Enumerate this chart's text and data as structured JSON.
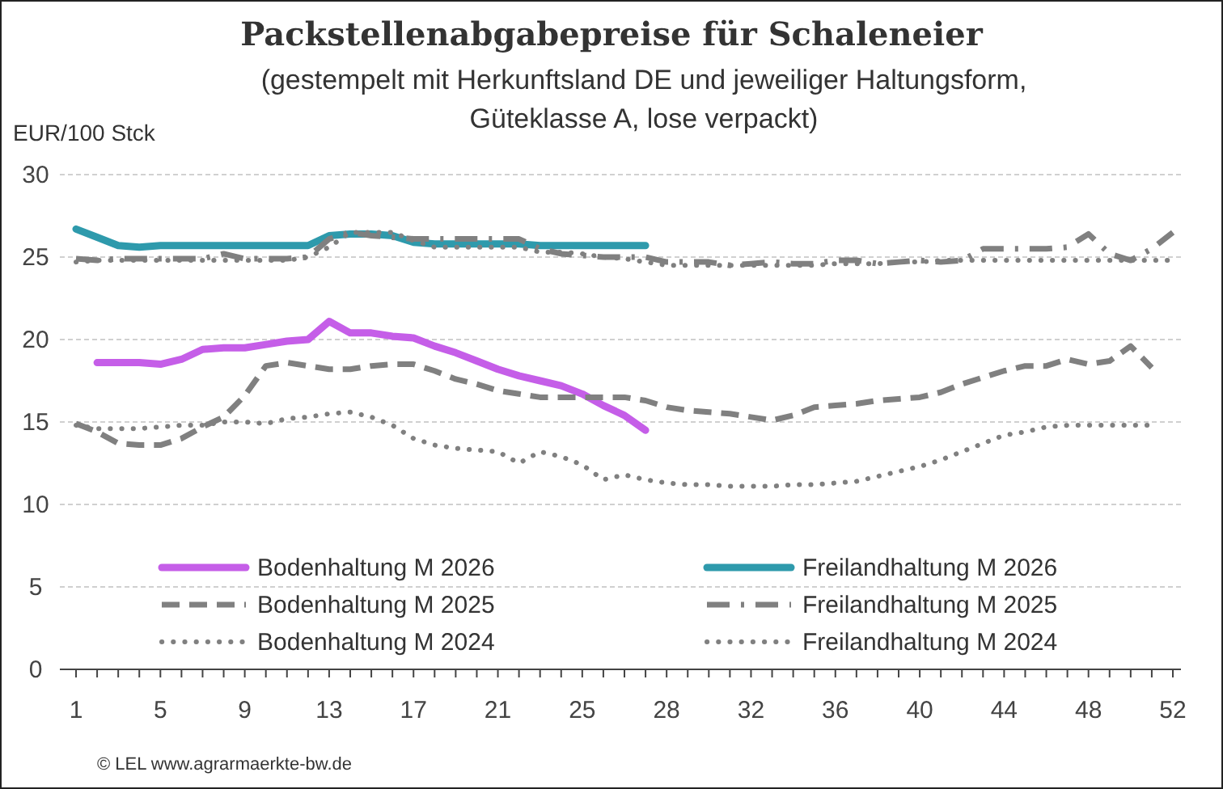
{
  "chart_data": {
    "type": "line",
    "title": "Packstellenabgabepreise für Schaleneier",
    "subtitle": "(gestempelt mit Herkunftsland DE und jeweiliger Haltungsform,\nGüteklasse A, lose verpackt)",
    "ylabel": "EUR/100 Stck",
    "annotations": [
      "© LEL www.agrarmaerkte-bw.de"
    ],
    "categories": [
      "1",
      null,
      null,
      null,
      "5",
      null,
      null,
      null,
      "9",
      null,
      null,
      null,
      "13",
      null,
      null,
      null,
      "17",
      null,
      null,
      null,
      "21",
      null,
      null,
      null,
      "25",
      null,
      null,
      null,
      "28",
      null,
      null,
      null,
      "32",
      null,
      null,
      null,
      "36",
      null,
      null,
      null,
      "40",
      null,
      null,
      null,
      "44",
      null,
      null,
      null,
      "48",
      null,
      null,
      null,
      "52"
    ],
    "ylim": [
      0,
      30
    ],
    "yticks": [
      0,
      5,
      10,
      15,
      20,
      25,
      30
    ],
    "grid": "y",
    "legend": "bottom",
    "marker": "none",
    "series": [
      {
        "name": "Bodenhaltung M 2026",
        "color": "#c55ee8",
        "line_style": "solid",
        "values": [
          null,
          18.6,
          18.6,
          18.6,
          18.5,
          18.8,
          19.4,
          19.5,
          19.5,
          19.7,
          19.9,
          20.0,
          21.1,
          20.4,
          20.4,
          20.2,
          20.1,
          19.6,
          19.2,
          18.7,
          18.2,
          17.8,
          17.5,
          17.2,
          16.7,
          16.0,
          15.4,
          14.5,
          null,
          null,
          null,
          null,
          null,
          null,
          null,
          null,
          null,
          null,
          null,
          null,
          null,
          null,
          null,
          null,
          null,
          null,
          null,
          null,
          null,
          null,
          null,
          null,
          null
        ]
      },
      {
        "name": "Freilandhaltung M 2026",
        "color": "#2e9aac",
        "line_style": "solid",
        "values": [
          26.7,
          26.2,
          25.7,
          25.6,
          25.7,
          25.7,
          25.7,
          25.7,
          25.7,
          25.7,
          25.7,
          25.7,
          26.3,
          26.4,
          26.4,
          26.3,
          25.9,
          25.8,
          25.8,
          25.8,
          25.8,
          25.8,
          25.7,
          25.7,
          25.7,
          25.7,
          25.7,
          25.7,
          null,
          null,
          null,
          null,
          null,
          null,
          null,
          null,
          null,
          null,
          null,
          null,
          null,
          null,
          null,
          null,
          null,
          null,
          null,
          null,
          null,
          null,
          null,
          null,
          null
        ]
      },
      {
        "name": "Bodenhaltung M 2025",
        "color": "#808080",
        "line_style": "dashed",
        "values": [
          14.9,
          14.4,
          13.7,
          13.6,
          13.6,
          14.0,
          14.7,
          15.3,
          16.6,
          18.4,
          18.6,
          18.4,
          18.2,
          18.2,
          18.4,
          18.5,
          18.5,
          18.1,
          17.6,
          17.3,
          16.9,
          16.7,
          16.5,
          16.5,
          16.5,
          16.5,
          16.5,
          16.3,
          15.9,
          15.7,
          15.6,
          15.5,
          15.3,
          15.1,
          15.4,
          15.9,
          16.0,
          16.1,
          16.3,
          16.4,
          16.5,
          16.8,
          17.3,
          17.7,
          18.1,
          18.4,
          18.4,
          18.8,
          18.5,
          18.7,
          19.6,
          18.3,
          null
        ]
      },
      {
        "name": "Freilandhaltung M 2025",
        "color": "#808080",
        "line_style": "dashdot",
        "values": [
          24.9,
          24.8,
          24.9,
          24.9,
          24.9,
          24.9,
          24.9,
          25.2,
          24.9,
          24.9,
          24.9,
          25.0,
          26.1,
          26.5,
          26.3,
          26.2,
          26.1,
          26.1,
          26.1,
          26.1,
          26.1,
          26.1,
          25.5,
          25.2,
          25.1,
          25.0,
          25.0,
          25.0,
          24.7,
          24.7,
          24.7,
          24.5,
          24.6,
          24.7,
          24.6,
          24.6,
          24.8,
          24.8,
          24.6,
          24.7,
          24.8,
          24.7,
          24.8,
          25.5,
          25.5,
          25.5,
          25.5,
          25.6,
          26.4,
          25.2,
          24.8,
          25.5,
          26.5
        ]
      },
      {
        "name": "Bodenhaltung M 2024",
        "color": "#808080",
        "line_style": "dotted",
        "values": [
          14.8,
          14.6,
          14.6,
          14.6,
          14.7,
          14.8,
          14.8,
          15.0,
          15.0,
          14.9,
          15.2,
          15.3,
          15.5,
          15.6,
          15.3,
          14.8,
          14.0,
          13.6,
          13.4,
          13.3,
          13.2,
          12.5,
          13.2,
          12.9,
          12.4,
          11.5,
          11.8,
          11.5,
          11.3,
          11.2,
          11.2,
          11.1,
          11.1,
          11.1,
          11.2,
          11.2,
          11.3,
          11.4,
          11.7,
          12.0,
          12.3,
          12.7,
          13.2,
          13.7,
          14.2,
          14.4,
          14.7,
          14.8,
          14.8,
          14.8,
          14.8,
          14.8,
          null
        ]
      },
      {
        "name": "Freilandhaltung M 2024",
        "color": "#808080",
        "line_style": "dotted",
        "values": [
          24.7,
          24.8,
          24.8,
          24.8,
          24.8,
          24.8,
          24.8,
          24.8,
          24.8,
          24.8,
          24.8,
          25.0,
          25.6,
          26.5,
          26.5,
          26.5,
          26.0,
          25.6,
          25.6,
          25.6,
          25.6,
          25.6,
          25.3,
          25.3,
          25.2,
          25.0,
          24.9,
          24.7,
          24.5,
          24.5,
          24.5,
          24.5,
          24.5,
          24.5,
          24.5,
          24.5,
          24.6,
          24.6,
          24.6,
          24.7,
          24.7,
          24.8,
          24.8,
          24.8,
          24.8,
          24.8,
          24.8,
          24.8,
          24.8,
          24.8,
          24.8,
          24.8,
          24.8
        ]
      }
    ]
  }
}
